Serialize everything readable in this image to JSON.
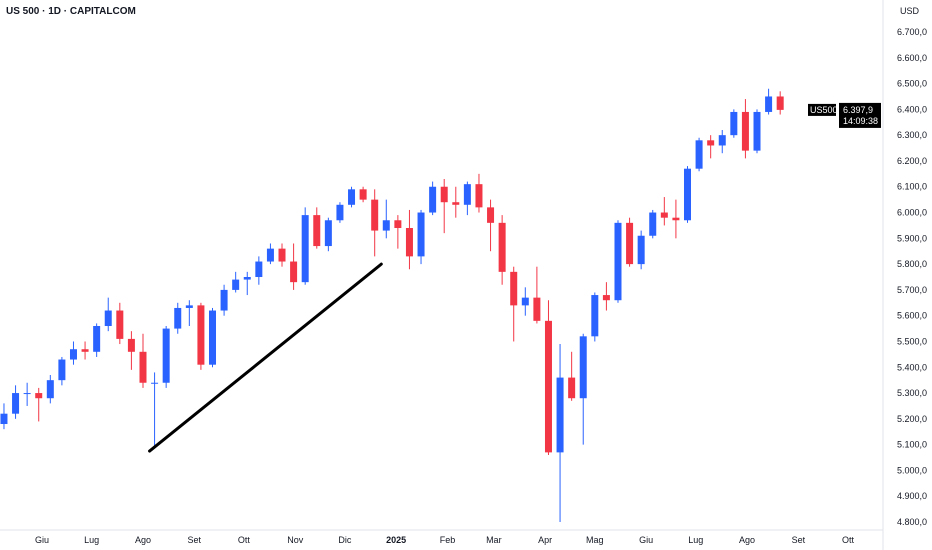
{
  "header": {
    "title": "US 500 · 1D · CAPITALCOM"
  },
  "chart_data": {
    "type": "candlestick",
    "currency": "USD",
    "symbol": "US500",
    "last_price": "6.397,9",
    "countdown": "14:09:38",
    "last_price_value": 6397.9,
    "ylim": [
      4750,
      6800
    ],
    "yticks": [
      4800,
      4900,
      5000,
      5100,
      5200,
      5300,
      5400,
      5500,
      5600,
      5700,
      5800,
      5900,
      6000,
      6100,
      6200,
      6300,
      6400,
      6500,
      6600,
      6700
    ],
    "ytick_labels": [
      "4.800,0",
      "4.900,0",
      "5.000,0",
      "5.100,0",
      "5.200,0",
      "5.300,0",
      "5.400,0",
      "5.500,0",
      "5.600,0",
      "5.700,0",
      "5.800,0",
      "5.900,0",
      "6.000,0",
      "6.100,0",
      "6.200,0",
      "6.300,0",
      "6.400,0",
      "6.500,0",
      "6.600,0",
      "6.700,0"
    ],
    "xticks": [
      {
        "date": "2024-06-01",
        "label": "Giu"
      },
      {
        "date": "2024-07-01",
        "label": "Lug"
      },
      {
        "date": "2024-08-01",
        "label": "Ago"
      },
      {
        "date": "2024-09-01",
        "label": "Set"
      },
      {
        "date": "2024-10-01",
        "label": "Ott"
      },
      {
        "date": "2024-11-01",
        "label": "Nov"
      },
      {
        "date": "2024-12-01",
        "label": "Dic"
      },
      {
        "date": "2025-01-01",
        "label": "2025"
      },
      {
        "date": "2025-02-01",
        "label": "Feb"
      },
      {
        "date": "2025-03-01",
        "label": "Mar"
      },
      {
        "date": "2025-04-01",
        "label": "Apr"
      },
      {
        "date": "2025-05-01",
        "label": "Mag"
      },
      {
        "date": "2025-06-01",
        "label": "Giu"
      },
      {
        "date": "2025-07-01",
        "label": "Lug"
      },
      {
        "date": "2025-08-01",
        "label": "Ago"
      },
      {
        "date": "2025-09-01",
        "label": "Set"
      },
      {
        "date": "2025-10-01",
        "label": "Ott"
      }
    ],
    "colors": {
      "up": "#2962ff",
      "down": "#f23645",
      "trendline": "#000000"
    },
    "candles_weekly": [
      [
        "2024-05-06",
        5180,
        5260,
        5160,
        5220
      ],
      [
        "2024-05-13",
        5220,
        5330,
        5200,
        5300
      ],
      [
        "2024-05-20",
        5300,
        5340,
        5250,
        5300
      ],
      [
        "2024-05-27",
        5300,
        5320,
        5190,
        5280
      ],
      [
        "2024-06-03",
        5280,
        5370,
        5260,
        5350
      ],
      [
        "2024-06-10",
        5350,
        5440,
        5330,
        5430
      ],
      [
        "2024-06-17",
        5430,
        5500,
        5410,
        5470
      ],
      [
        "2024-06-24",
        5470,
        5500,
        5430,
        5460
      ],
      [
        "2024-07-01",
        5460,
        5570,
        5440,
        5560
      ],
      [
        "2024-07-08",
        5560,
        5670,
        5540,
        5620
      ],
      [
        "2024-07-15",
        5620,
        5650,
        5490,
        5510
      ],
      [
        "2024-07-22",
        5510,
        5540,
        5390,
        5460
      ],
      [
        "2024-07-29",
        5460,
        5530,
        5320,
        5340
      ],
      [
        "2024-08-05",
        5340,
        5380,
        5090,
        5340
      ],
      [
        "2024-08-12",
        5340,
        5560,
        5320,
        5550
      ],
      [
        "2024-08-19",
        5550,
        5650,
        5530,
        5630
      ],
      [
        "2024-08-26",
        5630,
        5660,
        5560,
        5640
      ],
      [
        "2024-09-02",
        5640,
        5650,
        5390,
        5410
      ],
      [
        "2024-09-09",
        5410,
        5630,
        5400,
        5620
      ],
      [
        "2024-09-16",
        5620,
        5720,
        5600,
        5700
      ],
      [
        "2024-09-23",
        5700,
        5770,
        5690,
        5740
      ],
      [
        "2024-09-30",
        5740,
        5770,
        5680,
        5750
      ],
      [
        "2024-10-07",
        5750,
        5830,
        5720,
        5810
      ],
      [
        "2024-10-14",
        5810,
        5880,
        5800,
        5860
      ],
      [
        "2024-10-21",
        5860,
        5880,
        5790,
        5810
      ],
      [
        "2024-10-28",
        5810,
        5880,
        5700,
        5730
      ],
      [
        "2024-11-04",
        5730,
        6020,
        5720,
        5990
      ],
      [
        "2024-11-11",
        5990,
        6020,
        5860,
        5870
      ],
      [
        "2024-11-18",
        5870,
        5980,
        5850,
        5970
      ],
      [
        "2024-11-25",
        5970,
        6040,
        5960,
        6030
      ],
      [
        "2024-12-02",
        6030,
        6100,
        6020,
        6090
      ],
      [
        "2024-12-09",
        6090,
        6100,
        6040,
        6050
      ],
      [
        "2024-12-16",
        6050,
        6090,
        5830,
        5930
      ],
      [
        "2024-12-23",
        5930,
        6050,
        5900,
        5970
      ],
      [
        "2024-12-30",
        5970,
        5990,
        5860,
        5940
      ],
      [
        "2025-01-06",
        5940,
        6010,
        5780,
        5830
      ],
      [
        "2025-01-13",
        5830,
        6010,
        5800,
        6000
      ],
      [
        "2025-01-20",
        6000,
        6120,
        5990,
        6100
      ],
      [
        "2025-01-27",
        6100,
        6130,
        5920,
        6040
      ],
      [
        "2025-02-03",
        6040,
        6100,
        5980,
        6030
      ],
      [
        "2025-02-10",
        6030,
        6120,
        5990,
        6110
      ],
      [
        "2025-02-17",
        6110,
        6150,
        6000,
        6020
      ],
      [
        "2025-02-24",
        6020,
        6050,
        5850,
        5960
      ],
      [
        "2025-03-03",
        5960,
        5990,
        5720,
        5770
      ],
      [
        "2025-03-10",
        5770,
        5790,
        5500,
        5640
      ],
      [
        "2025-03-17",
        5640,
        5710,
        5600,
        5670
      ],
      [
        "2025-03-24",
        5670,
        5790,
        5570,
        5580
      ],
      [
        "2025-03-31",
        5580,
        5660,
        5060,
        5070
      ],
      [
        "2025-04-07",
        5070,
        5490,
        4800,
        5360
      ],
      [
        "2025-04-14",
        5360,
        5460,
        5270,
        5280
      ],
      [
        "2025-04-21",
        5280,
        5530,
        5100,
        5520
      ],
      [
        "2025-04-28",
        5520,
        5690,
        5500,
        5680
      ],
      [
        "2025-05-05",
        5680,
        5730,
        5620,
        5660
      ],
      [
        "2025-05-12",
        5660,
        5970,
        5650,
        5960
      ],
      [
        "2025-05-19",
        5960,
        5980,
        5790,
        5800
      ],
      [
        "2025-05-26",
        5800,
        5930,
        5780,
        5910
      ],
      [
        "2025-06-02",
        5910,
        6010,
        5900,
        6000
      ],
      [
        "2025-06-09",
        6000,
        6060,
        5950,
        5980
      ],
      [
        "2025-06-16",
        5980,
        6050,
        5900,
        5970
      ],
      [
        "2025-06-23",
        5970,
        6180,
        5960,
        6170
      ],
      [
        "2025-06-30",
        6170,
        6290,
        6160,
        6280
      ],
      [
        "2025-07-07",
        6280,
        6300,
        6210,
        6260
      ],
      [
        "2025-07-14",
        6260,
        6320,
        6230,
        6300
      ],
      [
        "2025-07-21",
        6300,
        6400,
        6290,
        6390
      ],
      [
        "2025-07-28",
        6390,
        6440,
        6210,
        6240
      ],
      [
        "2025-08-04",
        6240,
        6400,
        6230,
        6390
      ],
      [
        "2025-08-11",
        6390,
        6480,
        6380,
        6450
      ],
      [
        "2025-08-18",
        6450,
        6470,
        6380,
        6398
      ]
    ],
    "trendline": {
      "start": {
        "date": "2024-08-05",
        "price": 5075
      },
      "end": {
        "date": "2024-12-23",
        "price": 5800
      }
    }
  }
}
